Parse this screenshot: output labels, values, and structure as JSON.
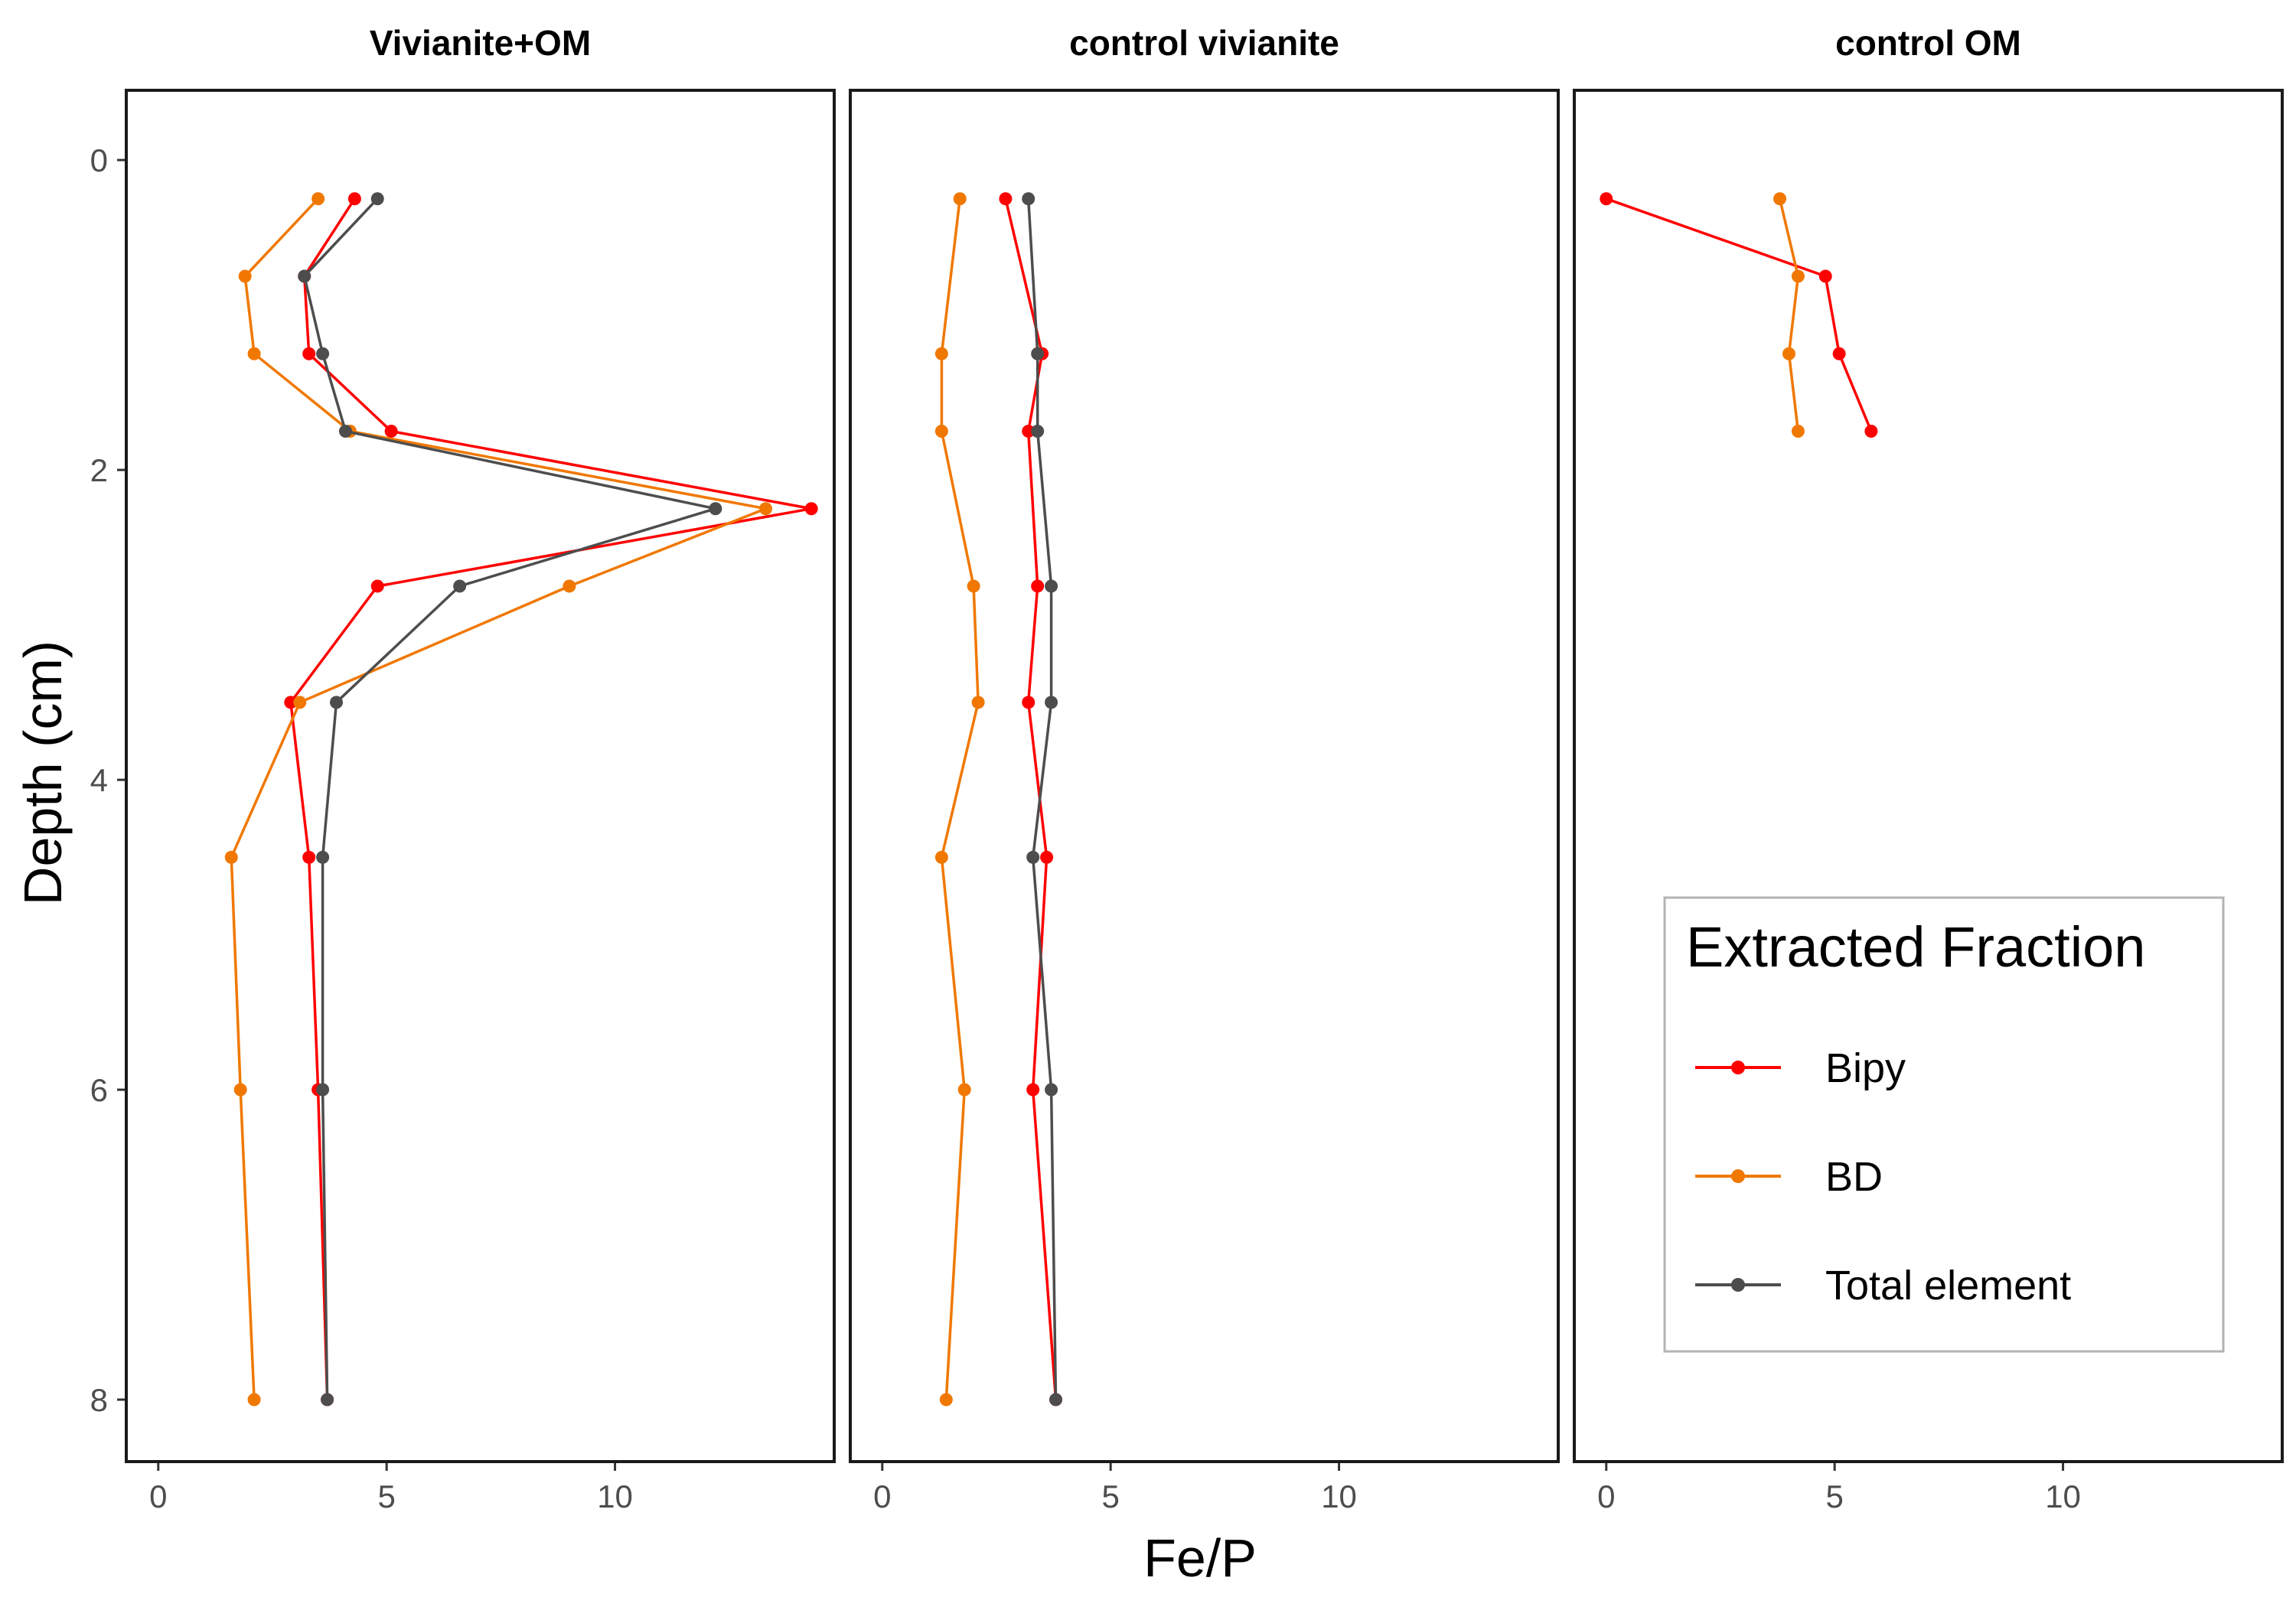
{
  "chart_data": {
    "type": "line",
    "xlabel": "Fe/P",
    "ylabel": "Depth (cm)",
    "xlim": [
      -0.7,
      14.8
    ],
    "ylim": [
      -0.45,
      8.4
    ],
    "y_reversed": true,
    "xticks": [
      0,
      5,
      10
    ],
    "yticks": [
      0,
      2,
      4,
      6,
      8
    ],
    "grid": false,
    "legend": {
      "title": "Extracted Fraction",
      "placement": "inside-right-panel-bottom",
      "entries": [
        "Bipy",
        "BD",
        "Total element"
      ]
    },
    "colors": {
      "Bipy": "#ff0000",
      "BD": "#f07800",
      "Total element": "#4d4d4d"
    },
    "panels": [
      {
        "title": "Vivianite+OM",
        "series": [
          {
            "name": "Bipy",
            "points": [
              [
                4.3,
                0.25
              ],
              [
                3.2,
                0.75
              ],
              [
                3.3,
                1.25
              ],
              [
                5.1,
                1.75
              ],
              [
                14.3,
                2.25
              ],
              [
                4.8,
                2.75
              ],
              [
                2.9,
                3.5
              ],
              [
                3.3,
                4.5
              ],
              [
                3.5,
                6.0
              ],
              [
                3.7,
                8.0
              ]
            ]
          },
          {
            "name": "BD",
            "points": [
              [
                3.5,
                0.25
              ],
              [
                1.9,
                0.75
              ],
              [
                2.1,
                1.25
              ],
              [
                4.2,
                1.75
              ],
              [
                13.3,
                2.25
              ],
              [
                9.0,
                2.75
              ],
              [
                3.1,
                3.5
              ],
              [
                1.6,
                4.5
              ],
              [
                1.8,
                6.0
              ],
              [
                2.1,
                8.0
              ]
            ]
          },
          {
            "name": "Total element",
            "points": [
              [
                4.8,
                0.25
              ],
              [
                3.2,
                0.75
              ],
              [
                3.6,
                1.25
              ],
              [
                4.1,
                1.75
              ],
              [
                12.2,
                2.25
              ],
              [
                6.6,
                2.75
              ],
              [
                3.9,
                3.5
              ],
              [
                3.6,
                4.5
              ],
              [
                3.6,
                6.0
              ],
              [
                3.7,
                8.0
              ]
            ]
          }
        ]
      },
      {
        "title": "control vivianite",
        "series": [
          {
            "name": "Bipy",
            "points": [
              [
                2.7,
                0.25
              ],
              [
                3.5,
                1.25
              ],
              [
                3.2,
                1.75
              ],
              [
                3.4,
                2.75
              ],
              [
                3.2,
                3.5
              ],
              [
                3.6,
                4.5
              ],
              [
                3.3,
                6.0
              ],
              [
                3.8,
                8.0
              ]
            ]
          },
          {
            "name": "BD",
            "points": [
              [
                1.7,
                0.25
              ],
              [
                1.3,
                1.25
              ],
              [
                1.3,
                1.75
              ],
              [
                2.0,
                2.75
              ],
              [
                2.1,
                3.5
              ],
              [
                1.3,
                4.5
              ],
              [
                1.8,
                6.0
              ],
              [
                1.4,
                8.0
              ]
            ]
          },
          {
            "name": "Total element",
            "points": [
              [
                3.2,
                0.25
              ],
              [
                3.4,
                1.25
              ],
              [
                3.4,
                1.75
              ],
              [
                3.7,
                2.75
              ],
              [
                3.7,
                3.5
              ],
              [
                3.3,
                4.5
              ],
              [
                3.7,
                6.0
              ],
              [
                3.8,
                8.0
              ]
            ]
          }
        ]
      },
      {
        "title": "control OM",
        "series": [
          {
            "name": "Bipy",
            "points": [
              [
                0.0,
                0.25
              ],
              [
                4.8,
                0.75
              ],
              [
                5.1,
                1.25
              ],
              [
                5.8,
                1.75
              ]
            ]
          },
          {
            "name": "BD",
            "points": [
              [
                3.8,
                0.25
              ],
              [
                4.2,
                0.75
              ],
              [
                4.0,
                1.25
              ],
              [
                4.2,
                1.75
              ]
            ]
          }
        ]
      }
    ]
  }
}
